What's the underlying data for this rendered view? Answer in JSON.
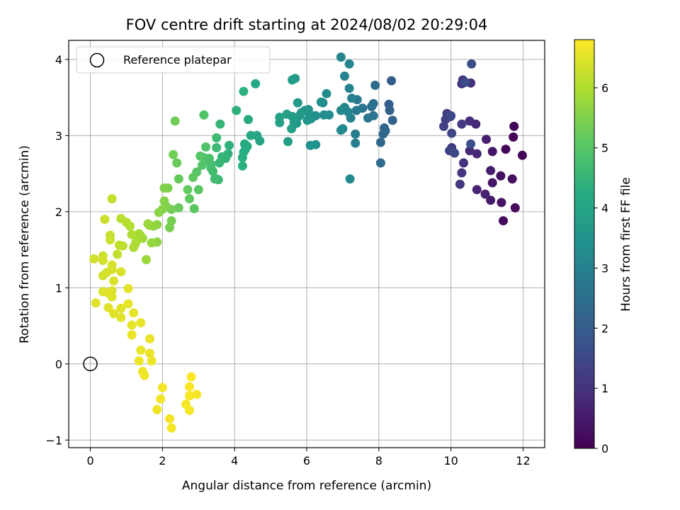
{
  "chart_data": {
    "type": "scatter",
    "title": "FOV centre drift starting at 2024/08/02 20:29:04",
    "xlabel": "Angular distance from reference (arcmin)",
    "ylabel": "Rotation from reference (arcmin)",
    "colorbar_label": "Hours from first FF file",
    "xlim": [
      -0.6,
      12.6
    ],
    "ylim": [
      -1.1,
      4.25
    ],
    "clim": [
      0,
      6.8
    ],
    "colormap": "viridis",
    "grid": true,
    "legend_position": "top-left",
    "x_ticks": [
      0,
      2,
      4,
      6,
      8,
      10,
      12
    ],
    "x_tick_labels": [
      "0",
      "2",
      "4",
      "6",
      "8",
      "10",
      "12"
    ],
    "y_ticks": [
      -1,
      0,
      1,
      2,
      3,
      4
    ],
    "y_tick_labels": [
      "−1",
      "0",
      "1",
      "2",
      "3",
      "4"
    ],
    "colorbar_ticks": [
      0,
      1,
      2,
      3,
      4,
      5,
      6
    ],
    "colorbar_tick_labels": [
      "0",
      "1",
      "2",
      "3",
      "4",
      "5",
      "6"
    ],
    "reference": {
      "name": "Reference platepar",
      "x": 0,
      "y": 0
    },
    "points": [
      [
        11.75,
        3.12,
        0.05
      ],
      [
        11.73,
        2.98,
        0.08
      ],
      [
        11.98,
        2.74,
        0.12
      ],
      [
        11.52,
        2.82,
        0.15
      ],
      [
        11.78,
        2.05,
        0.18
      ],
      [
        11.45,
        1.88,
        0.22
      ],
      [
        11.7,
        2.43,
        0.25
      ],
      [
        11.38,
        2.47,
        0.3
      ],
      [
        11.4,
        2.12,
        0.35
      ],
      [
        11.15,
        2.79,
        0.4
      ],
      [
        11.15,
        2.38,
        0.45
      ],
      [
        11.1,
        2.15,
        0.5
      ],
      [
        11.1,
        2.54,
        0.55
      ],
      [
        10.98,
        2.95,
        0.6
      ],
      [
        10.95,
        2.23,
        0.65
      ],
      [
        10.72,
        2.29,
        0.7
      ],
      [
        10.72,
        2.76,
        0.75
      ],
      [
        10.69,
        3.15,
        0.8
      ],
      [
        10.52,
        2.8,
        0.85
      ],
      [
        10.52,
        3.19,
        0.9
      ],
      [
        10.55,
        3.69,
        0.95
      ],
      [
        10.35,
        2.64,
        1.0
      ],
      [
        10.3,
        2.51,
        1.05
      ],
      [
        10.33,
        3.73,
        1.08
      ],
      [
        10.3,
        3.68,
        1.1
      ],
      [
        10.25,
        2.36,
        1.12
      ],
      [
        10.3,
        3.15,
        1.15
      ],
      [
        10.02,
        2.84,
        1.18
      ],
      [
        9.99,
        3.25,
        1.2
      ],
      [
        9.89,
        3.29,
        1.25
      ],
      [
        9.85,
        3.21,
        1.3
      ],
      [
        9.8,
        3.12,
        1.35
      ],
      [
        9.96,
        2.8,
        1.4
      ],
      [
        10.02,
        3.03,
        1.45
      ],
      [
        10.1,
        2.77,
        1.5
      ],
      [
        10.0,
        3.26,
        1.55
      ],
      [
        10.4,
        3.7,
        1.6
      ],
      [
        10.57,
        3.94,
        1.65
      ],
      [
        10.55,
        2.89,
        1.7
      ],
      [
        8.35,
        3.72,
        2.0
      ],
      [
        8.28,
        3.41,
        2.05
      ],
      [
        8.3,
        3.33,
        2.1
      ],
      [
        8.38,
        3.2,
        2.15
      ],
      [
        8.15,
        3.1,
        2.2
      ],
      [
        8.18,
        3.06,
        2.25
      ],
      [
        8.12,
        3.02,
        2.3
      ],
      [
        8.05,
        2.91,
        2.35
      ],
      [
        8.05,
        2.64,
        2.4
      ],
      [
        7.9,
        3.66,
        2.45
      ],
      [
        7.85,
        3.42,
        2.5
      ],
      [
        7.8,
        3.38,
        2.55
      ],
      [
        7.85,
        3.26,
        2.6
      ],
      [
        7.7,
        3.23,
        2.65
      ],
      [
        7.55,
        3.36,
        2.7
      ],
      [
        7.4,
        3.47,
        2.75
      ],
      [
        7.38,
        3.33,
        2.8
      ],
      [
        7.35,
        3.02,
        2.85
      ],
      [
        7.35,
        2.9,
        2.9
      ],
      [
        7.25,
        3.49,
        2.95
      ],
      [
        7.22,
        3.23,
        3.0
      ],
      [
        7.18,
        3.62,
        3.02
      ],
      [
        7.05,
        3.78,
        3.05
      ],
      [
        6.95,
        4.03,
        3.08
      ],
      [
        7.18,
        3.94,
        3.1
      ],
      [
        7.15,
        3.31,
        3.12
      ],
      [
        7.05,
        3.37,
        3.15
      ],
      [
        7.0,
        3.09,
        3.18
      ],
      [
        6.95,
        3.33,
        3.2
      ],
      [
        6.95,
        3.07,
        3.22
      ],
      [
        7.2,
        2.43,
        3.25
      ],
      [
        6.62,
        3.27,
        3.28
      ],
      [
        6.55,
        3.55,
        3.3
      ],
      [
        6.45,
        3.43,
        3.32
      ],
      [
        6.48,
        3.27,
        3.35
      ],
      [
        6.4,
        3.44,
        3.38
      ],
      [
        6.25,
        3.26,
        3.4
      ],
      [
        6.25,
        2.88,
        3.42
      ],
      [
        6.12,
        3.22,
        3.45
      ],
      [
        6.1,
        2.87,
        3.48
      ],
      [
        6.05,
        3.34,
        3.5
      ],
      [
        6.08,
        3.28,
        3.52
      ],
      [
        6.02,
        3.2,
        3.55
      ],
      [
        5.95,
        3.33,
        3.58
      ],
      [
        5.85,
        3.3,
        3.6
      ],
      [
        5.8,
        3.26,
        3.62
      ],
      [
        5.75,
        3.43,
        3.65
      ],
      [
        5.72,
        3.22,
        3.68
      ],
      [
        5.72,
        3.16,
        3.7
      ],
      [
        5.65,
        3.17,
        3.72
      ],
      [
        5.6,
        3.25,
        3.74
      ],
      [
        5.68,
        3.75,
        3.76
      ],
      [
        5.6,
        3.73,
        3.78
      ],
      [
        5.58,
        3.09,
        3.8
      ],
      [
        5.45,
        3.28,
        3.82
      ],
      [
        5.48,
        2.92,
        3.84
      ],
      [
        5.25,
        3.24,
        3.86
      ],
      [
        5.25,
        3.17,
        3.88
      ],
      [
        4.7,
        2.93,
        4.0
      ],
      [
        4.62,
        3.0,
        4.03
      ],
      [
        4.58,
        3.68,
        4.06
      ],
      [
        4.45,
        3.0,
        4.09
      ],
      [
        4.38,
        3.21,
        4.12
      ],
      [
        4.35,
        2.86,
        4.15
      ],
      [
        4.28,
        2.89,
        4.18
      ],
      [
        4.3,
        2.82,
        4.21
      ],
      [
        4.25,
        2.78,
        4.24
      ],
      [
        4.22,
        2.71,
        4.27
      ],
      [
        4.22,
        2.6,
        4.3
      ],
      [
        4.25,
        3.58,
        4.33
      ],
      [
        4.05,
        3.33,
        4.36
      ],
      [
        3.85,
        2.87,
        4.39
      ],
      [
        3.82,
        2.76,
        4.42
      ],
      [
        3.75,
        2.7,
        4.45
      ],
      [
        3.65,
        2.72,
        4.48
      ],
      [
        3.6,
        3.15,
        4.51
      ],
      [
        3.58,
        2.64,
        4.54
      ],
      [
        3.55,
        2.42,
        4.57
      ],
      [
        3.5,
        2.43,
        4.6
      ],
      [
        3.5,
        2.84,
        4.63
      ],
      [
        3.5,
        2.97,
        4.66
      ],
      [
        3.45,
        2.43,
        4.69
      ],
      [
        3.4,
        2.53,
        4.72
      ],
      [
        3.35,
        2.57,
        4.75
      ],
      [
        3.35,
        2.62,
        4.78
      ],
      [
        3.3,
        2.7,
        4.81
      ],
      [
        3.25,
        2.67,
        4.84
      ],
      [
        3.15,
        2.71,
        4.87
      ],
      [
        3.2,
        2.85,
        4.9
      ],
      [
        3.15,
        3.27,
        4.93
      ],
      [
        3.1,
        2.61,
        4.96
      ],
      [
        3.05,
        2.73,
        4.99
      ],
      [
        2.95,
        2.52,
        5.02
      ],
      [
        3.0,
        2.29,
        5.05
      ],
      [
        2.88,
        2.04,
        5.08
      ],
      [
        2.85,
        2.45,
        5.11
      ],
      [
        2.75,
        2.17,
        5.14
      ],
      [
        2.7,
        2.29,
        5.17
      ],
      [
        2.45,
        2.43,
        5.2
      ],
      [
        2.45,
        2.05,
        5.23
      ],
      [
        2.4,
        2.64,
        5.26
      ],
      [
        2.35,
        3.19,
        5.29
      ],
      [
        2.3,
        2.75,
        5.32
      ],
      [
        2.25,
        2.03,
        5.35
      ],
      [
        2.25,
        1.88,
        5.38
      ],
      [
        2.2,
        1.79,
        5.41
      ],
      [
        2.15,
        2.31,
        5.44
      ],
      [
        2.1,
        2.07,
        5.47
      ],
      [
        2.05,
        2.31,
        5.5
      ],
      [
        2.05,
        2.14,
        5.53
      ],
      [
        2.0,
        2.03,
        5.56
      ],
      [
        1.9,
        1.99,
        5.59
      ],
      [
        1.85,
        1.6,
        5.62
      ],
      [
        1.85,
        1.83,
        5.65
      ],
      [
        1.75,
        1.81,
        5.68
      ],
      [
        1.7,
        1.59,
        5.71
      ],
      [
        1.65,
        1.82,
        5.74
      ],
      [
        1.6,
        1.84,
        5.77
      ],
      [
        1.55,
        1.37,
        5.8
      ],
      [
        1.45,
        1.65,
        5.83
      ],
      [
        1.4,
        1.68,
        5.86
      ],
      [
        1.35,
        1.71,
        5.89
      ],
      [
        1.3,
        1.63,
        5.92
      ],
      [
        1.25,
        1.58,
        5.95
      ],
      [
        1.2,
        1.53,
        5.98
      ],
      [
        1.15,
        1.7,
        6.01
      ],
      [
        1.1,
        1.81,
        6.04
      ],
      [
        1.0,
        1.86,
        6.07
      ],
      [
        0.85,
        1.91,
        6.1
      ],
      [
        0.9,
        1.55,
        6.13
      ],
      [
        0.8,
        1.56,
        6.16
      ],
      [
        0.75,
        1.44,
        6.19
      ],
      [
        0.6,
        2.17,
        6.22
      ],
      [
        0.55,
        1.69,
        6.25
      ],
      [
        0.55,
        1.63,
        6.27
      ],
      [
        0.4,
        1.9,
        6.29
      ],
      [
        0.35,
        1.42,
        6.31
      ],
      [
        0.1,
        1.38,
        6.33
      ],
      [
        0.35,
        1.36,
        6.35
      ],
      [
        0.35,
        1.16,
        6.37
      ],
      [
        0.45,
        1.2,
        6.39
      ],
      [
        0.6,
        1.3,
        6.41
      ],
      [
        0.6,
        1.24,
        6.42
      ],
      [
        0.85,
        1.21,
        6.43
      ],
      [
        0.65,
        1.09,
        6.44
      ],
      [
        0.6,
        0.96,
        6.45
      ],
      [
        0.6,
        0.88,
        6.46
      ],
      [
        0.35,
        0.95,
        6.47
      ],
      [
        0.5,
        0.93,
        6.48
      ],
      [
        0.15,
        0.8,
        6.49
      ],
      [
        0.5,
        0.74,
        6.5
      ],
      [
        0.65,
        0.66,
        6.51
      ],
      [
        0.85,
        0.73,
        6.52
      ],
      [
        0.85,
        0.61,
        6.53
      ],
      [
        1.05,
        0.79,
        6.54
      ],
      [
        1.05,
        0.99,
        6.55
      ],
      [
        1.2,
        0.67,
        6.56
      ],
      [
        1.15,
        0.51,
        6.57
      ],
      [
        1.15,
        0.38,
        6.58
      ],
      [
        1.4,
        0.54,
        6.59
      ],
      [
        1.65,
        0.33,
        6.6
      ],
      [
        1.65,
        0.14,
        6.61
      ],
      [
        1.4,
        0.18,
        6.62
      ],
      [
        1.35,
        0.04,
        6.63
      ],
      [
        1.7,
        0.04,
        6.64
      ],
      [
        1.45,
        -0.1,
        6.65
      ],
      [
        1.5,
        -0.15,
        6.66
      ],
      [
        1.85,
        -0.6,
        6.67
      ],
      [
        1.95,
        -0.46,
        6.68
      ],
      [
        2.0,
        -0.31,
        6.69
      ],
      [
        2.2,
        -0.72,
        6.7
      ],
      [
        2.25,
        -0.84,
        6.71
      ],
      [
        2.65,
        -0.53,
        6.72
      ],
      [
        2.75,
        -0.61,
        6.73
      ],
      [
        2.75,
        -0.42,
        6.74
      ],
      [
        2.95,
        -0.4,
        6.75
      ],
      [
        2.75,
        -0.3,
        6.76
      ],
      [
        2.8,
        -0.17,
        6.77
      ]
    ]
  }
}
